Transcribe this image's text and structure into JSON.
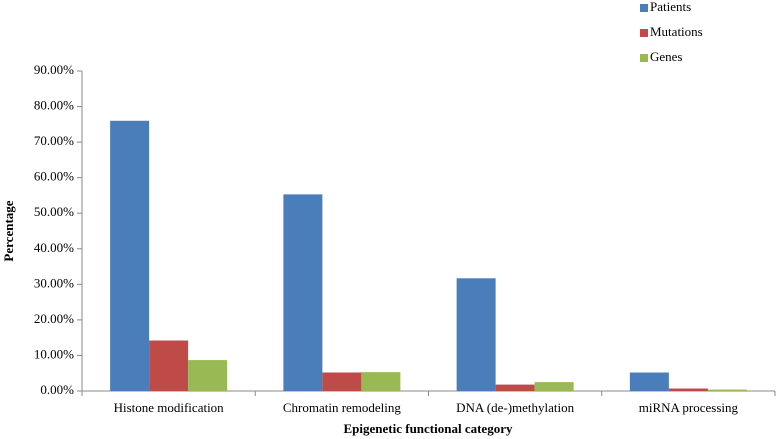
{
  "chart_data": {
    "type": "bar",
    "x_label": "Epigenetic functional category",
    "y_label": "Percentage",
    "categories": [
      "Histone modification",
      "Chromatin remodeling",
      "DNA (de-)methylation",
      "miRNA processing"
    ],
    "series": [
      {
        "name": "Patients",
        "color": "#4a7ebb",
        "values": [
          76.0,
          55.3,
          31.7,
          5.2
        ]
      },
      {
        "name": "Mutations",
        "color": "#be4b48",
        "values": [
          14.2,
          5.2,
          1.8,
          0.7
        ]
      },
      {
        "name": "Genes",
        "color": "#98b954",
        "values": [
          8.7,
          5.3,
          2.5,
          0.4
        ]
      }
    ],
    "ylim": [
      0,
      90
    ],
    "yticks": [
      {
        "value": 0,
        "label": "0.00%"
      },
      {
        "value": 10,
        "label": "10.00%"
      },
      {
        "value": 20,
        "label": "20.00%"
      },
      {
        "value": 30,
        "label": "30.00%"
      },
      {
        "value": 40,
        "label": "40.00%"
      },
      {
        "value": 50,
        "label": "50.00%"
      },
      {
        "value": 60,
        "label": "60.00%"
      },
      {
        "value": 70,
        "label": "70.00%"
      },
      {
        "value": 80,
        "label": "80.00%"
      },
      {
        "value": 90,
        "label": "90.00%"
      }
    ],
    "grid": false,
    "legend": "top-right"
  }
}
